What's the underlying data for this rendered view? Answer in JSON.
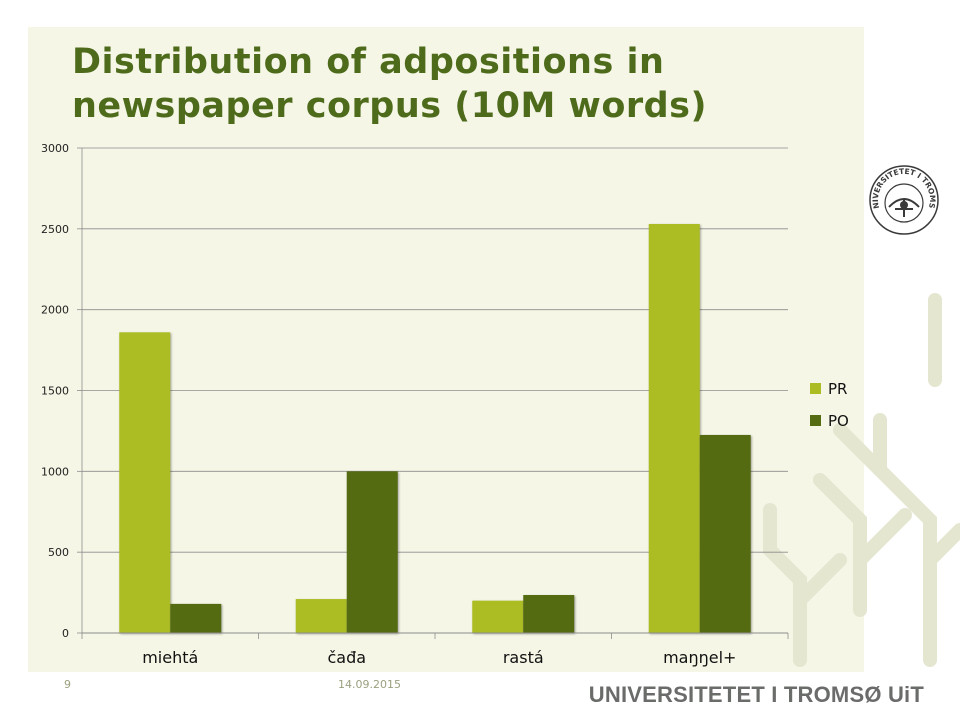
{
  "slide": {
    "title_line1": "Distribution of adpositions in",
    "title_line2": "newspaper corpus (10M words)",
    "page_number": "9",
    "date": "14.09.2015",
    "brand": "UNIVERSITETET I TROMSØ UiT",
    "seal_text": "UNIVERSITETET I TROMSØ"
  },
  "colors": {
    "background": "#f5f6e6",
    "title": "#4e6b1c",
    "pr": "#acbd24",
    "po": "#556b12",
    "decoration": "#e6e8d4"
  },
  "chart_data": {
    "type": "bar",
    "title": "",
    "xlabel": "",
    "ylabel": "",
    "categories": [
      "miehtá",
      "čađa",
      "rastá",
      "maŋŋel+"
    ],
    "series": [
      {
        "name": "PR",
        "values": [
          1860,
          210,
          200,
          2530
        ]
      },
      {
        "name": "PO",
        "values": [
          180,
          1000,
          235,
          1225
        ]
      }
    ],
    "ylim": [
      0,
      3000
    ],
    "yticks": [
      0,
      500,
      1000,
      1500,
      2000,
      2500,
      3000
    ],
    "grid": true,
    "legend": "right"
  }
}
